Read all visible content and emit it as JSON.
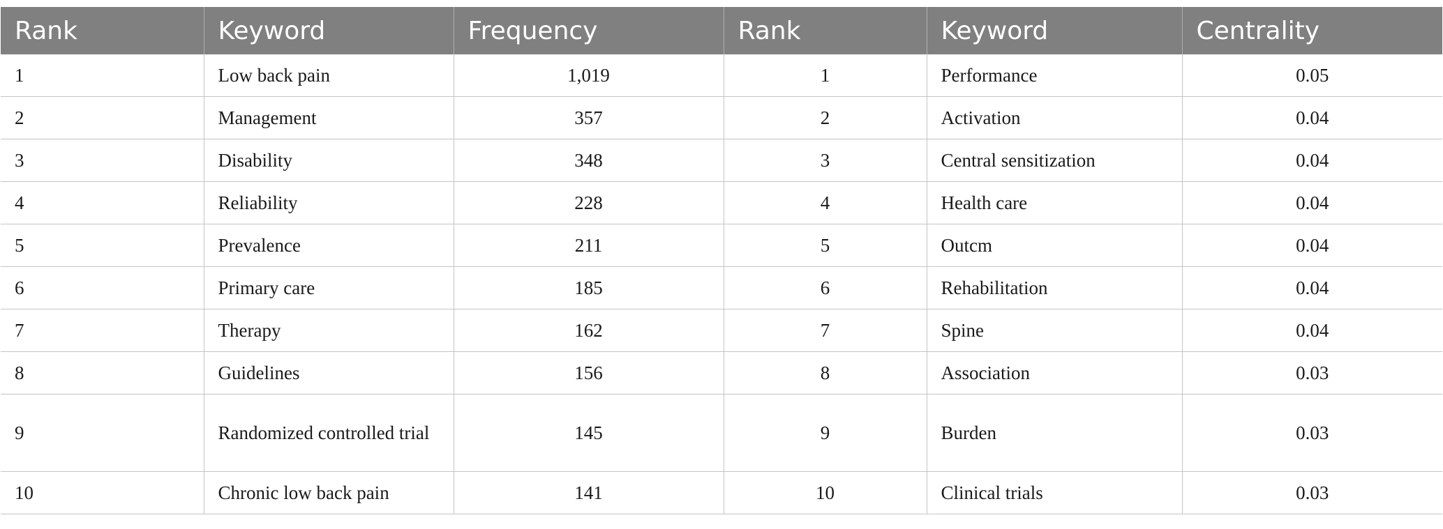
{
  "table": {
    "headers": [
      "Rank",
      "Keyword",
      "Frequency",
      "Rank",
      "Keyword",
      "Centrality"
    ],
    "rows": [
      [
        "1",
        "Low back pain",
        "1,019",
        "1",
        "Performance",
        "0.05"
      ],
      [
        "2",
        "Management",
        "357",
        "2",
        "Activation",
        "0.04"
      ],
      [
        "3",
        "Disability",
        "348",
        "3",
        "Central sensitization",
        "0.04"
      ],
      [
        "4",
        "Reliability",
        "228",
        "4",
        "Health care",
        "0.04"
      ],
      [
        "5",
        "Prevalence",
        "211",
        "5",
        "Outcm",
        "0.04"
      ],
      [
        "6",
        "Primary care",
        "185",
        "6",
        "Rehabilitation",
        "0.04"
      ],
      [
        "7",
        "Therapy",
        "162",
        "7",
        "Spine",
        "0.04"
      ],
      [
        "8",
        "Guidelines",
        "156",
        "8",
        "Association",
        "0.03"
      ],
      [
        "9",
        "Randomized controlled trial",
        "145",
        "9",
        "Burden",
        "0.03"
      ],
      [
        "10",
        "Chronic low back pain",
        "141",
        "10",
        "Clinical trials",
        "0.03"
      ]
    ]
  }
}
